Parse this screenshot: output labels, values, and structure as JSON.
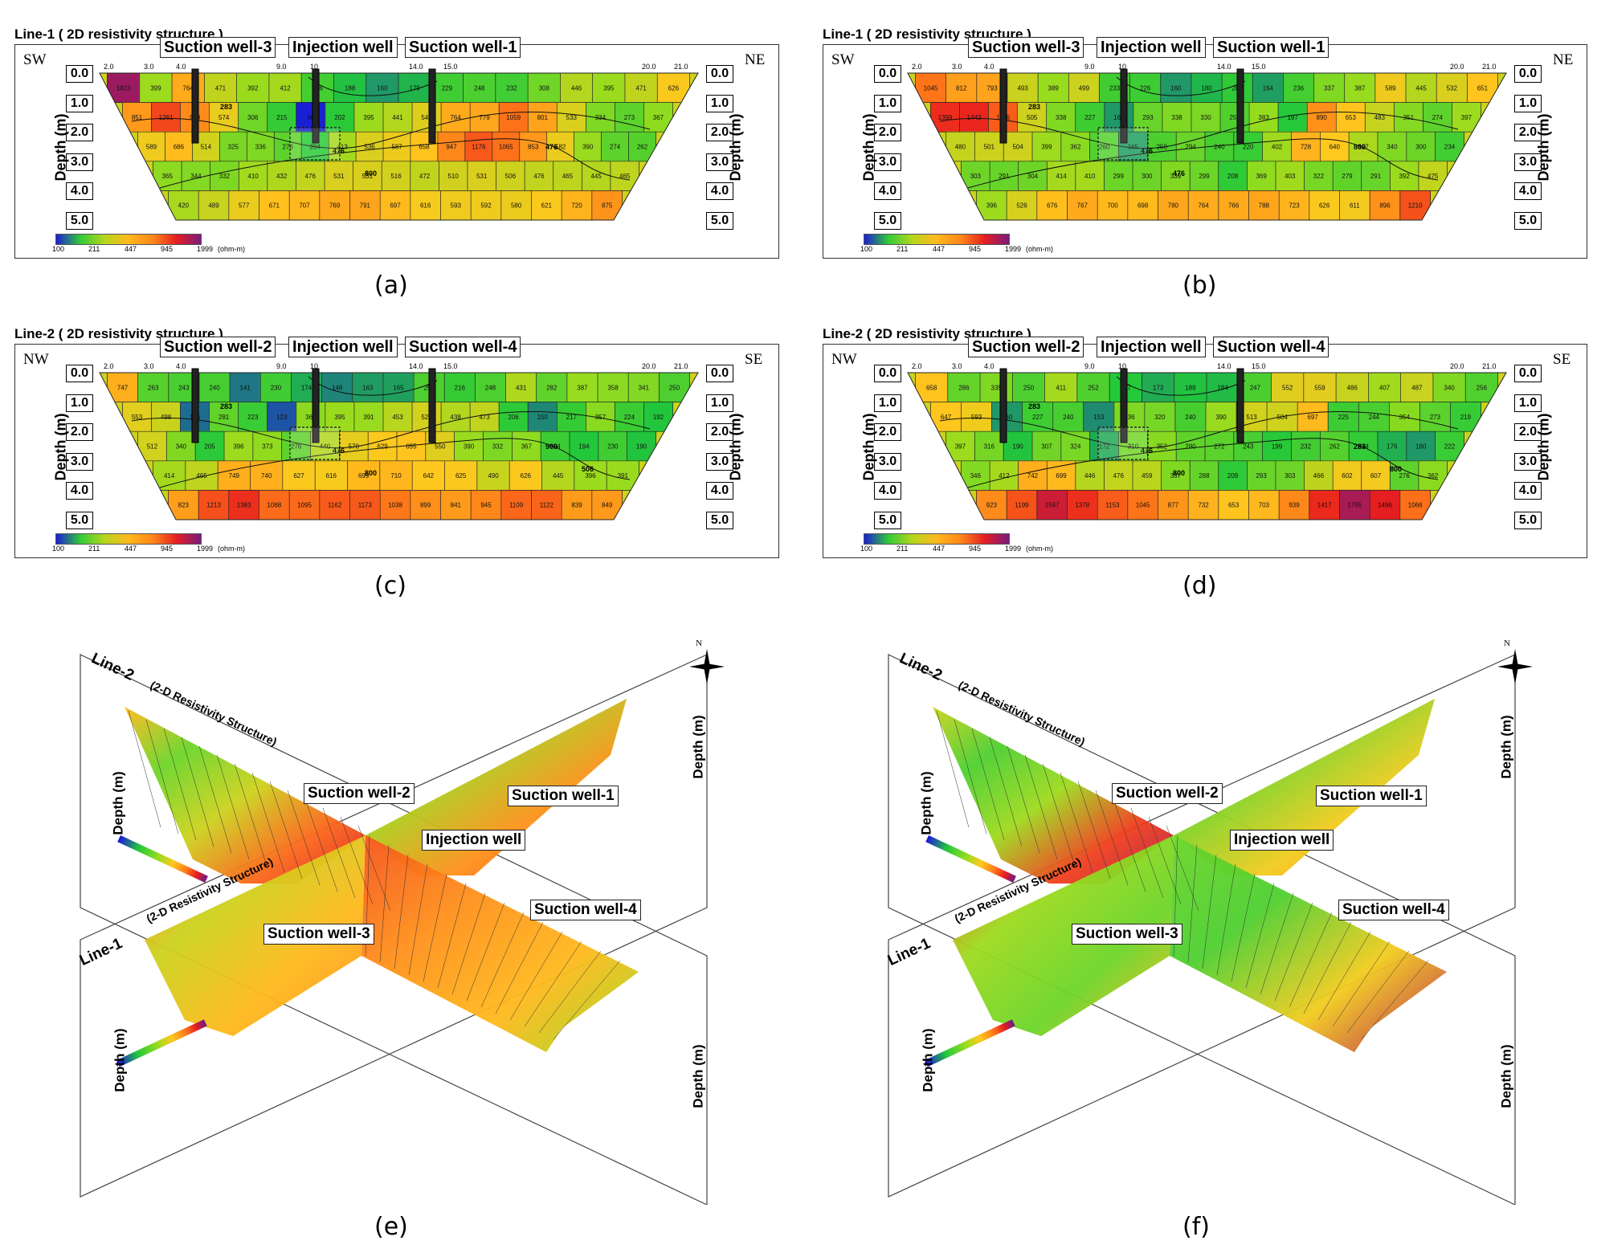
{
  "chart_data": [
    {
      "type": "heatmap",
      "panel": "(a)",
      "title": "Line-1 ( 2D resistivity structure )",
      "left_dir": "SW",
      "right_dir": "NE",
      "ylabel": "Depth (m)",
      "yticks": [
        "0.0",
        "1.0",
        "2.0",
        "3.0",
        "4.0",
        "5.0"
      ],
      "xticks": [
        "2.0",
        "3.0",
        "4.0",
        "9.0",
        "10",
        "14.0",
        "15.0",
        "20.0",
        "21.0"
      ],
      "wells": [
        "Suction well-3",
        "Injection well",
        "Suction well-1"
      ],
      "colorbar": {
        "ticks": [
          "100",
          "211",
          "447",
          "945",
          "1999"
        ],
        "unit": "(ohm-m)"
      },
      "contour_labels": [
        "283",
        "476",
        "800",
        "476"
      ],
      "rows": [
        [
          1823,
          399,
          764,
          471,
          392,
          412,
          236,
          188,
          160,
          179,
          229,
          248,
          232,
          308,
          446,
          395,
          471,
          626
        ],
        [
          851,
          1261,
          918,
          574,
          306,
          215,
          96,
          202,
          395,
          441,
          544,
          764,
          779,
          1059,
          801,
          533,
          334,
          273,
          367
        ],
        [
          589,
          686,
          514,
          325,
          336,
          276,
          204,
          413,
          536,
          587,
          658,
          947,
          1176,
          1065,
          853,
          582,
          390,
          274,
          262
        ],
        [
          365,
          344,
          332,
          410,
          432,
          476,
          531,
          531,
          516,
          472,
          510,
          531,
          506,
          476,
          465,
          445,
          465
        ],
        [
          420,
          489,
          577,
          671,
          707,
          769,
          791,
          697,
          616,
          593,
          592,
          580,
          621,
          720,
          875
        ]
      ]
    },
    {
      "type": "heatmap",
      "panel": "(b)",
      "title": "Line-1 ( 2D resistivity structure )",
      "left_dir": "SW",
      "right_dir": "NE",
      "ylabel": "Depth (m)",
      "yticks": [
        "0.0",
        "1.0",
        "2.0",
        "3.0",
        "4.0",
        "5.0"
      ],
      "xticks": [
        "2.0",
        "3.0",
        "4.0",
        "9.0",
        "10",
        "14.0",
        "15.0",
        "20.0",
        "21.0"
      ],
      "wells": [
        "Suction well-3",
        "Injection well",
        "Suction well-1"
      ],
      "colorbar": {
        "ticks": [
          "100",
          "211",
          "447",
          "945",
          "1999"
        ],
        "unit": "(ohm-m)"
      },
      "contour_labels": [
        "283",
        "476",
        "476",
        "800"
      ],
      "rows": [
        [
          1045,
          812,
          793,
          493,
          389,
          499,
          233,
          226,
          160,
          180,
          208,
          164,
          236,
          337,
          387,
          589,
          445,
          532,
          651
        ],
        [
          1399,
          1443,
          1146,
          505,
          338,
          227,
          160,
          293,
          338,
          330,
          252,
          383,
          197,
          890,
          653,
          483,
          351,
          274,
          397
        ],
        [
          480,
          501,
          504,
          399,
          362,
          260,
          165,
          250,
          294,
          240,
          220,
          402,
          728,
          640,
          427,
          340,
          300,
          234
        ],
        [
          303,
          291,
          304,
          414,
          410,
          299,
          300,
          339,
          299,
          208,
          369,
          403,
          322,
          279,
          291,
          392,
          475
        ],
        [
          396,
          526,
          676,
          767,
          700,
          698,
          780,
          764,
          766,
          788,
          723,
          626,
          611,
          896,
          1210
        ]
      ]
    },
    {
      "type": "heatmap",
      "panel": "(c)",
      "title": "Line-2 ( 2D resistivity structure )",
      "left_dir": "NW",
      "right_dir": "SE",
      "ylabel": "Depth (m)",
      "yticks": [
        "0.0",
        "1.0",
        "2.0",
        "3.0",
        "4.0",
        "5.0"
      ],
      "xticks": [
        "2.0",
        "3.0",
        "4.0",
        "9.0",
        "10",
        "14.0",
        "15.0",
        "20.0",
        "21.0"
      ],
      "wells": [
        "Suction well-2",
        "Injection well",
        "Suction well-4"
      ],
      "colorbar": {
        "ticks": [
          "100",
          "211",
          "447",
          "945",
          "1999"
        ],
        "unit": "(ohm-m)"
      },
      "contour_labels": [
        "283",
        "476",
        "800",
        "900",
        "506"
      ],
      "rows": [
        [
          747,
          263,
          243,
          240,
          141,
          230,
          174,
          148,
          163,
          165,
          250,
          216,
          248,
          431,
          282,
          387,
          358,
          341,
          250
        ],
        [
          553,
          498,
          135,
          281,
          223,
          123,
          361,
          395,
          391,
          453,
          520,
          438,
          473,
          206,
          150,
          217,
          357,
          224,
          192
        ],
        [
          512,
          340,
          205,
          396,
          373,
          276,
          440,
          570,
          629,
          655,
          550,
          390,
          332,
          367,
          224,
          194,
          230,
          190
        ],
        [
          414,
          465,
          749,
          740,
          627,
          616,
          699,
          710,
          642,
          625,
          490,
          626,
          445,
          396,
          391
        ],
        [
          823,
          1213,
          1383,
          1088,
          1095,
          1162,
          1173,
          1038,
          899,
          841,
          945,
          1109,
          1122,
          839,
          849
        ]
      ]
    },
    {
      "type": "heatmap",
      "panel": "(d)",
      "title": "Line-2 ( 2D resistivity structure )",
      "left_dir": "NW",
      "right_dir": "SE",
      "ylabel": "Depth (m)",
      "yticks": [
        "0.0",
        "1.0",
        "2.0",
        "3.0",
        "4.0",
        "5.0"
      ],
      "xticks": [
        "2.0",
        "3.0",
        "4.0",
        "9.0",
        "10",
        "14.0",
        "15.0",
        "20.0",
        "21.0"
      ],
      "wells": [
        "Suction well-2",
        "Injection well",
        "Suction well-4"
      ],
      "colorbar": {
        "ticks": [
          "100",
          "211",
          "447",
          "945",
          "1999"
        ],
        "unit": "(ohm-m)"
      },
      "contour_labels": [
        "283",
        "476",
        "800",
        "283",
        "800"
      ],
      "rows": [
        [
          658,
          286,
          335,
          250,
          411,
          252,
          197,
          173,
          189,
          184,
          247,
          552,
          559,
          486,
          407,
          487,
          340,
          256
        ],
        [
          647,
          593,
          160,
          227,
          240,
          153,
          336,
          320,
          240,
          390,
          513,
          504,
          697,
          225,
          244,
          354,
          273,
          219
        ],
        [
          397,
          316,
          190,
          307,
          324,
          172,
          310,
          352,
          280,
          272,
          243,
          199,
          232,
          262,
          214,
          176,
          160,
          222
        ],
        [
          346,
          412,
          742,
          699,
          446,
          476,
          459,
          337,
          288,
          209,
          293,
          303,
          466,
          602,
          607,
          276,
          362
        ],
        [
          923,
          1199,
          1597,
          1378,
          1153,
          1045,
          877,
          732,
          653,
          703,
          939,
          1417,
          1765,
          1496,
          1066
        ]
      ]
    }
  ],
  "panels_3d": [
    {
      "caption": "(e)",
      "line2_title": "Line-2",
      "line1_title": "Line-1",
      "structure_label": "(2-D Resistivity Structure)",
      "wells": [
        "Suction well-2",
        "Suction well-1",
        "Injection well",
        "Suction well-4",
        "Suction well-3"
      ],
      "depth_label": "Depth (m)",
      "north": "N"
    },
    {
      "caption": "(f)",
      "line2_title": "Line-2",
      "line1_title": "Line-1",
      "structure_label": "(2-D Resistivity Structure)",
      "wells": [
        "Suction well-2",
        "Suction well-1",
        "Injection well",
        "Suction well-4",
        "Suction well-3"
      ],
      "depth_label": "Depth (m)",
      "north": "N"
    }
  ],
  "captions": [
    "(a)",
    "(b)",
    "(c)",
    "(d)",
    "(e)",
    "(f)"
  ],
  "colors": {
    "low": "#1a1fd6",
    "mid_low": "#22c83a",
    "mid": "#b8e020",
    "mid_high": "#ff9a1a",
    "high": "#e81e1e",
    "max": "#7a1a7e"
  }
}
